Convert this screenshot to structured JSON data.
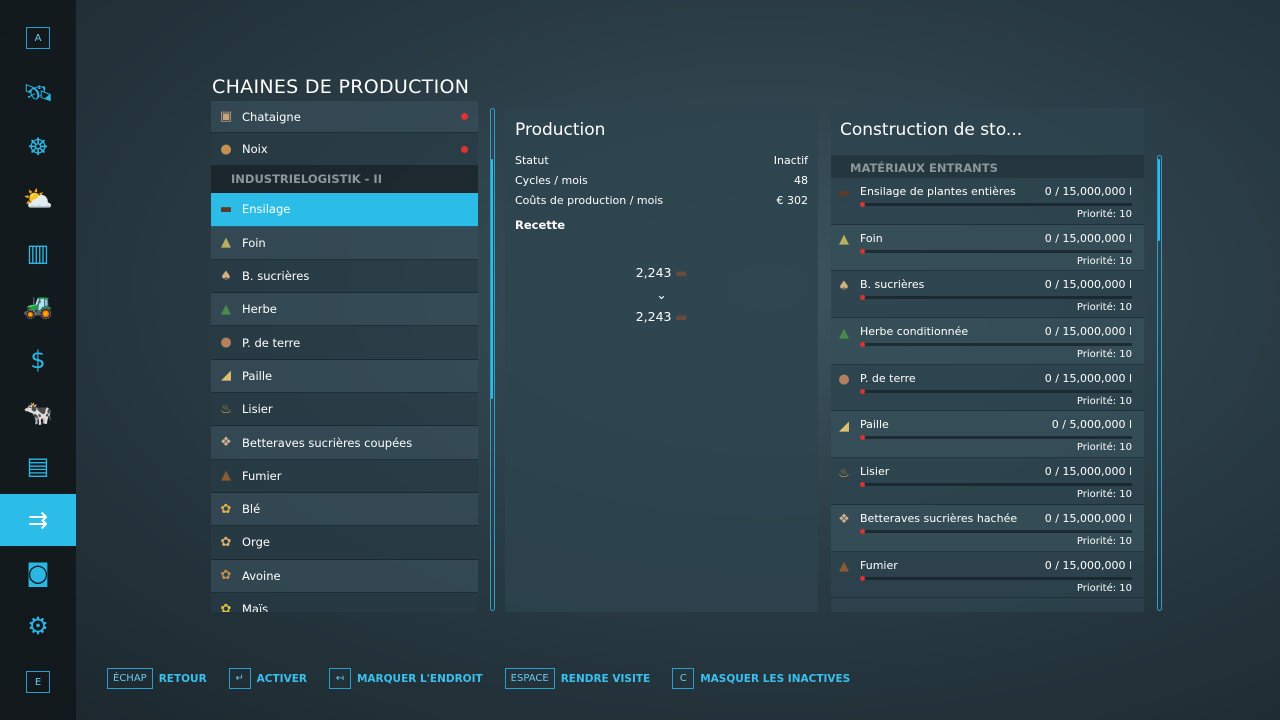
{
  "sidebar": {
    "top_key": "A",
    "bottom_key": "E",
    "items": [
      {
        "icon": "satellite-map-icon",
        "glyph": "🛰"
      },
      {
        "icon": "steering-wheel-icon",
        "glyph": "☸"
      },
      {
        "icon": "weather-icon",
        "glyph": "⛅"
      },
      {
        "icon": "statistics-icon",
        "glyph": "▥"
      },
      {
        "icon": "tractor-icon",
        "glyph": "🚜"
      },
      {
        "icon": "finances-icon",
        "glyph": "$"
      },
      {
        "icon": "animals-icon",
        "glyph": "🐄"
      },
      {
        "icon": "contracts-icon",
        "glyph": "▤"
      },
      {
        "icon": "production-chains-icon",
        "glyph": "⇉",
        "selected": true
      },
      {
        "icon": "presentation-icon",
        "glyph": "◙"
      },
      {
        "icon": "vehicle-settings-icon",
        "glyph": "⚙"
      }
    ]
  },
  "page_title": "CHAINES DE PRODUCTION",
  "list": [
    {
      "label": "Chataigne",
      "icon": "chestnut-icon",
      "glyph": "▣",
      "color": "#c8a27a",
      "dot": true
    },
    {
      "label": "Noix",
      "icon": "walnut-icon",
      "glyph": "●",
      "color": "#c89050",
      "dot": true
    },
    {
      "header": "INDUSTRIELOGISTIK   - II"
    },
    {
      "label": "Ensilage",
      "icon": "silage-icon",
      "glyph": "▬",
      "color": "#5a3a2a",
      "selected": true
    },
    {
      "label": "Foin",
      "icon": "hay-icon",
      "glyph": "▲",
      "color": "#b8b060"
    },
    {
      "label": "B. sucrières",
      "icon": "sugarbeet-icon",
      "glyph": "♠",
      "color": "#d0b080"
    },
    {
      "label": "Herbe",
      "icon": "grass-icon",
      "glyph": "▲",
      "color": "#4a8a4a"
    },
    {
      "label": "P. de terre",
      "icon": "potato-icon",
      "glyph": "●",
      "color": "#b08060"
    },
    {
      "label": "Paille",
      "icon": "straw-icon",
      "glyph": "◢",
      "color": "#e0c070"
    },
    {
      "label": "Lisier",
      "icon": "slurry-icon",
      "glyph": "♨",
      "color": "#c0a040"
    },
    {
      "label": "Betteraves sucrières coupées",
      "icon": "chopped-sugarbeet-icon",
      "glyph": "❖",
      "color": "#d0b090"
    },
    {
      "label": "Fumier",
      "icon": "manure-icon",
      "glyph": "▲",
      "color": "#8a5a30"
    },
    {
      "label": "Blé",
      "icon": "wheat-icon",
      "glyph": "✿",
      "color": "#e0b050"
    },
    {
      "label": "Orge",
      "icon": "barley-icon",
      "glyph": "✿",
      "color": "#d8b070"
    },
    {
      "label": "Avoine",
      "icon": "oat-icon",
      "glyph": "✿",
      "color": "#c09050"
    },
    {
      "label": "Maïs",
      "icon": "corn-icon",
      "glyph": "✿",
      "color": "#e0c040"
    }
  ],
  "production": {
    "title": "Production",
    "stats": [
      {
        "label": "Statut",
        "value": "Inactif"
      },
      {
        "label": "Cycles / mois",
        "value": "48"
      },
      {
        "label": "Coûts de production / mois",
        "value": "€ 302"
      }
    ],
    "recipe_label": "Recette",
    "input_amount": "2,243",
    "output_amount": "2,243"
  },
  "storage": {
    "title": "Construction de sto...",
    "section": "MATÉRIAUX ENTRANTS",
    "items": [
      {
        "name": "Ensilage de plantes entières",
        "amount": "0  / 15,000,000 l",
        "priority": "Priorité: 10",
        "icon": "silage-icon",
        "glyph": "▬",
        "color": "#5a3a2a",
        "fill": 0
      },
      {
        "name": "Foin",
        "amount": "0  / 15,000,000 l",
        "priority": "Priorité: 10",
        "icon": "hay-icon",
        "glyph": "▲",
        "color": "#b8b060",
        "fill": 0
      },
      {
        "name": "B. sucrières",
        "amount": "0  / 15,000,000 l",
        "priority": "Priorité: 10",
        "icon": "sugarbeet-icon",
        "glyph": "♠",
        "color": "#d0b080",
        "fill": 0
      },
      {
        "name": "Herbe conditionnée",
        "amount": "0  / 15,000,000 l",
        "priority": "Priorité: 10",
        "icon": "grass-icon",
        "glyph": "▲",
        "color": "#4a8a4a",
        "fill": 0
      },
      {
        "name": "P. de terre",
        "amount": "0  / 15,000,000 l",
        "priority": "Priorité: 10",
        "icon": "potato-icon",
        "glyph": "●",
        "color": "#b08060",
        "fill": 0
      },
      {
        "name": "Paille",
        "amount": "0  / 5,000,000 l",
        "priority": "Priorité: 10",
        "icon": "straw-icon",
        "glyph": "◢",
        "color": "#e0c070",
        "fill": 0
      },
      {
        "name": "Lisier",
        "amount": "0  / 15,000,000 l",
        "priority": "Priorité: 10",
        "icon": "slurry-icon",
        "glyph": "♨",
        "color": "#c0a040",
        "fill": 0
      },
      {
        "name": "Betteraves sucrières hachée",
        "amount": "0  / 15,000,000 l",
        "priority": "Priorité: 10",
        "icon": "chopped-sugarbeet-icon",
        "glyph": "❖",
        "color": "#d0b090",
        "fill": 0
      },
      {
        "name": "Fumier",
        "amount": "0  / 15,000,000 l",
        "priority": "Priorité: 10",
        "icon": "manure-icon",
        "glyph": "▲",
        "color": "#8a5a30",
        "fill": 0
      }
    ]
  },
  "footer": [
    {
      "key": "ÉCHAP",
      "label": "RETOUR"
    },
    {
      "key": "↵",
      "label": "ACTIVER"
    },
    {
      "key": "↤",
      "label": "MARQUER L'ENDROIT"
    },
    {
      "key": "ESPACE",
      "label": "RENDRE VISITE"
    },
    {
      "key": "C",
      "label": "MASQUER LES INACTIVES"
    }
  ],
  "colors": {
    "accent": "#2bbde8",
    "alert_dot": "#dd3333"
  }
}
